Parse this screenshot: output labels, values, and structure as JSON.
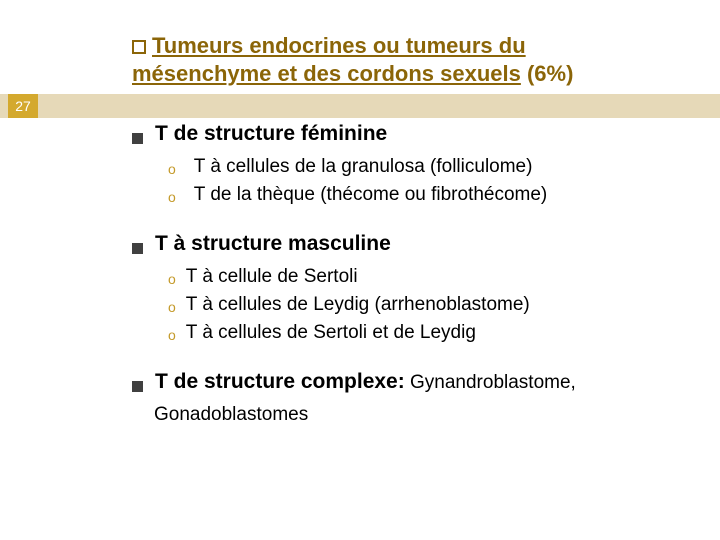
{
  "colors": {
    "accent_dark": "#8b6508",
    "accent_mid": "#c49a2a",
    "band_bg": "#e6d9b8",
    "badge_bg": "#d4a92e",
    "bullet_square": "#404040",
    "bullet_circle": "#c49a2a",
    "text_black": "#000000"
  },
  "header": {
    "line1_prefix": "Tumeurs endocrines ou tumeurs du",
    "line2_underlined": "mésenchyme et des cordons sexuels",
    "line2_suffix": " (6%)"
  },
  "page_number": "27",
  "sections": [
    {
      "title": "T de structure féminine",
      "items_gap": "wide",
      "items": [
        "T à cellules de la granulosa (folliculome)",
        "T de la thèque (thécome ou fibrothécome)"
      ]
    },
    {
      "title": " T à structure masculine",
      "items_gap": "tight",
      "items": [
        "T à cellule de Sertoli",
        "T à cellules de Leydig (arrhenoblastome)",
        "T à cellules de Sertoli et de Leydig"
      ]
    },
    {
      "title": "T de structure complexe:",
      "inline_extra": "Gynandroblastome,",
      "below_extra": "Gonadoblastomes",
      "items": []
    }
  ],
  "typography": {
    "header_fontsize": 22,
    "section_title_fontsize": 21,
    "item_fontsize": 19,
    "badge_fontsize": 14
  }
}
